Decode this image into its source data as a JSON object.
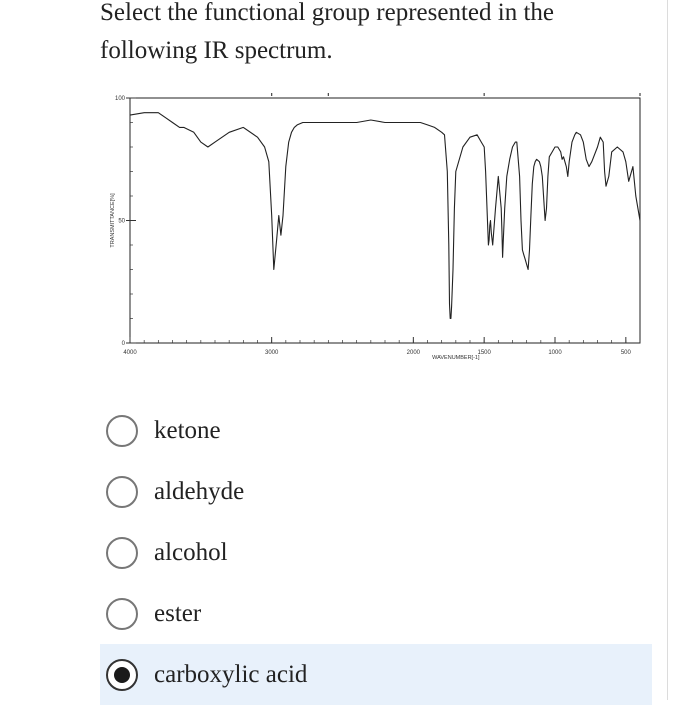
{
  "question": {
    "line1": "Select the functional group represented in the",
    "line2": "following IR spectrum."
  },
  "chart_data": {
    "type": "line",
    "title": "",
    "xlabel": "WAVENUMBER[-1]",
    "ylabel": "TRANSMITTANCE[%]",
    "x_axis_inverted": true,
    "xlim": [
      4000,
      400
    ],
    "ylim": [
      0,
      100
    ],
    "x_ticks": [
      {
        "value": 4000,
        "label": "4000"
      },
      {
        "value": 3000,
        "label": "3000"
      },
      {
        "value": 2000,
        "label": "2000"
      },
      {
        "value": 1500,
        "label": "1500"
      },
      {
        "value": 1000,
        "label": "1000"
      },
      {
        "value": 500,
        "label": "500"
      }
    ],
    "y_ticks": [
      {
        "value": 0,
        "label": "0"
      },
      {
        "value": 50,
        "label": "50"
      },
      {
        "value": 100,
        "label": "100"
      }
    ],
    "series": [
      {
        "color": "#222222",
        "x": [
          4000,
          3900,
          3800,
          3750,
          3700,
          3650,
          3620,
          3550,
          3500,
          3450,
          3400,
          3300,
          3200,
          3100,
          3050,
          3020,
          3000,
          2985,
          2965,
          2950,
          2935,
          2920,
          2900,
          2880,
          2860,
          2840,
          2820,
          2780,
          2700,
          2500,
          2400,
          2300,
          2200,
          2150,
          2100,
          2050,
          2000,
          1950,
          1900,
          1850,
          1800,
          1780,
          1760,
          1750,
          1745,
          1740,
          1735,
          1730,
          1720,
          1710,
          1700,
          1650,
          1600,
          1550,
          1520,
          1500,
          1490,
          1480,
          1470,
          1465,
          1460,
          1455,
          1450,
          1440,
          1420,
          1400,
          1380,
          1375,
          1370,
          1365,
          1355,
          1340,
          1320,
          1300,
          1280,
          1270,
          1250,
          1240,
          1230,
          1220,
          1210,
          1200,
          1190,
          1180,
          1170,
          1160,
          1150,
          1140,
          1130,
          1110,
          1100,
          1090,
          1070,
          1060,
          1050,
          1040,
          1020,
          1000,
          980,
          960,
          950,
          940,
          930,
          920,
          910,
          900,
          880,
          860,
          850,
          820,
          800,
          780,
          760,
          740,
          700,
          680,
          660,
          650,
          640,
          620,
          600,
          560,
          520,
          500,
          480,
          450,
          430,
          400
        ],
        "y": [
          93,
          94,
          94,
          92,
          90,
          88,
          88,
          86,
          82,
          80,
          82,
          86,
          88,
          84,
          80,
          74,
          52,
          30,
          42,
          52,
          44,
          52,
          72,
          82,
          86,
          88,
          89,
          90,
          90,
          90,
          90,
          91,
          90,
          90,
          90,
          90,
          90,
          90,
          89,
          88,
          86,
          85,
          70,
          40,
          16,
          10,
          10,
          15,
          30,
          55,
          70,
          80,
          84,
          85,
          82,
          80,
          70,
          55,
          40,
          42,
          48,
          50,
          45,
          40,
          55,
          68,
          55,
          46,
          35,
          42,
          55,
          68,
          75,
          80,
          82,
          82,
          68,
          50,
          38,
          36,
          34,
          32,
          30,
          38,
          52,
          65,
          72,
          74,
          75,
          74,
          72,
          68,
          50,
          55,
          68,
          76,
          78,
          80,
          80,
          78,
          75,
          76,
          74,
          72,
          68,
          74,
          82,
          85,
          86,
          85,
          82,
          75,
          72,
          74,
          80,
          84,
          82,
          70,
          64,
          68,
          78,
          80,
          78,
          74,
          66,
          72,
          60,
          50
        ]
      }
    ],
    "small_marks_above_plot": true,
    "grid": false
  },
  "options": [
    {
      "label": "ketone",
      "selected": false
    },
    {
      "label": "aldehyde",
      "selected": false
    },
    {
      "label": "alcohol",
      "selected": false
    },
    {
      "label": "ester",
      "selected": false
    },
    {
      "label": "carboxylic acid",
      "selected": true
    }
  ]
}
